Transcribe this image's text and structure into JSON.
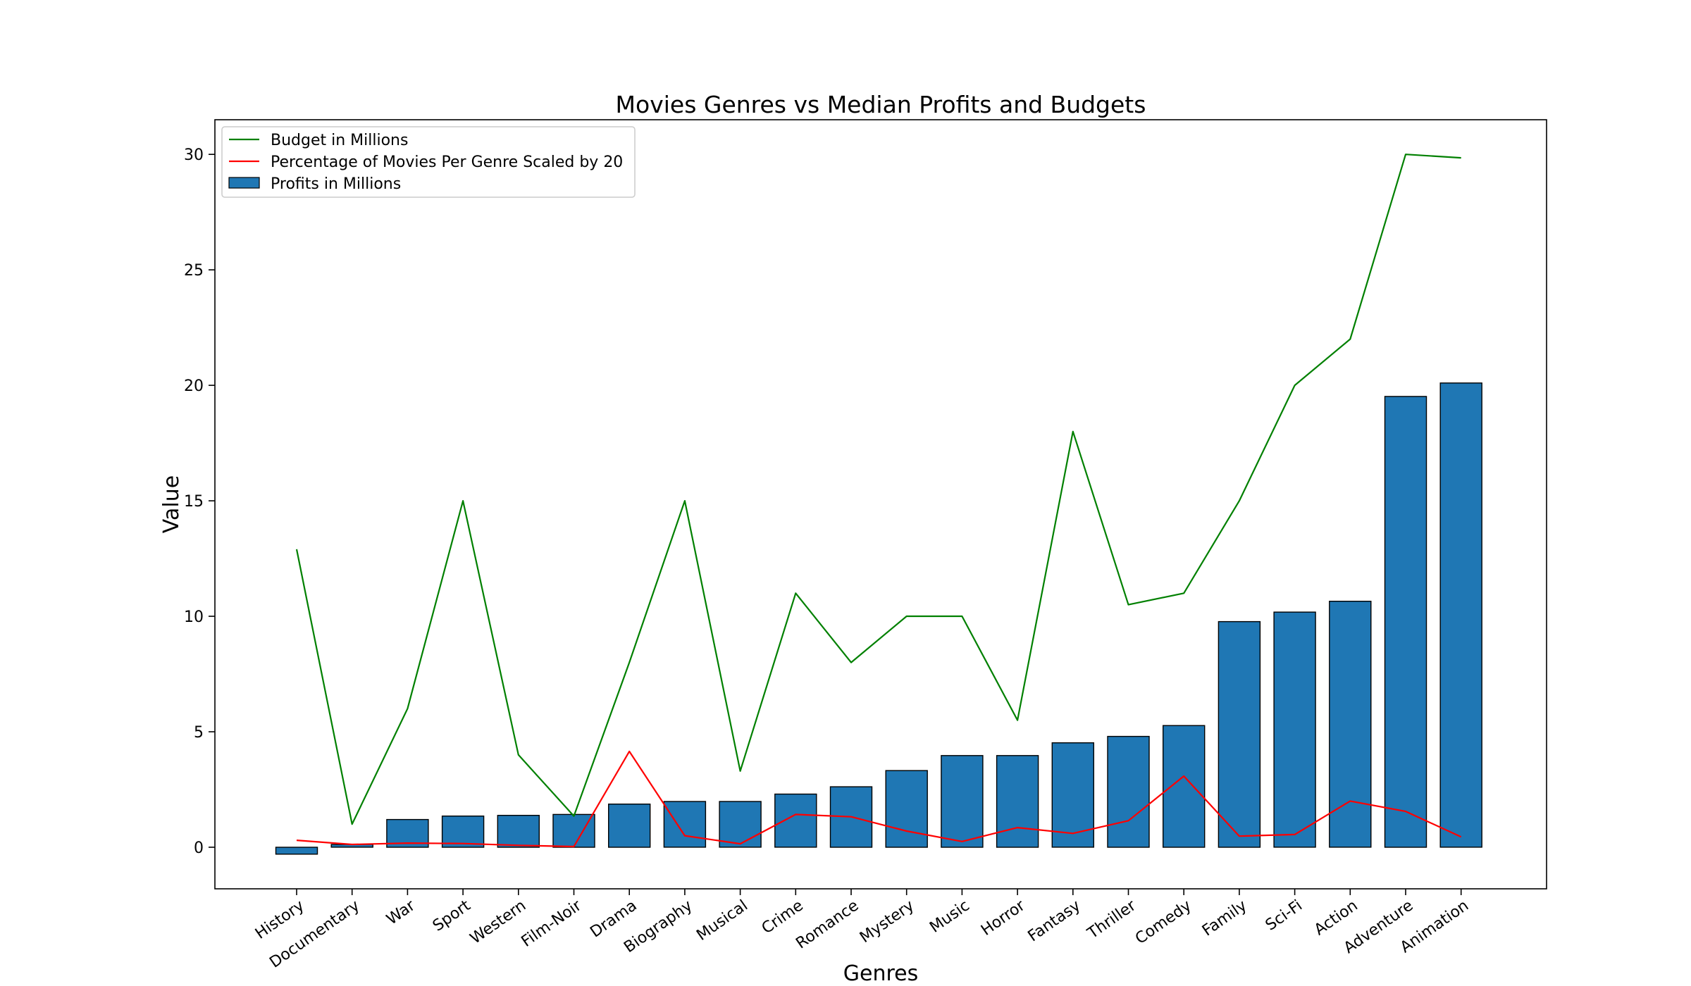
{
  "chart_data": {
    "type": "bar",
    "title": "Movies Genres vs Median Profits and Budgets",
    "xlabel": "Genres",
    "ylabel": "Value",
    "ylim": [
      -1.8,
      31.5
    ],
    "yticks": [
      0,
      5,
      10,
      15,
      20,
      25,
      30
    ],
    "grid": false,
    "legend_position": "top-left",
    "categories": [
      "History",
      "Documentary",
      "War",
      "Sport",
      "Western",
      "Film-Noir",
      "Drama",
      "Biography",
      "Musical",
      "Crime",
      "Romance",
      "Mystery",
      "Music",
      "Horror",
      "Fantasy",
      "Thriller",
      "Comedy",
      "Family",
      "Sci-Fi",
      "Action",
      "Adventure",
      "Animation"
    ],
    "series": [
      {
        "name": "Budget in Millions",
        "kind": "line",
        "color": "#008000",
        "values": [
          12.9,
          1.0,
          6.0,
          15.0,
          4.0,
          1.35,
          8.0,
          15.0,
          3.3,
          11.0,
          8.0,
          10.0,
          10.0,
          5.5,
          18.0,
          10.5,
          11.0,
          15.0,
          20.0,
          22.0,
          30.0,
          29.85
        ]
      },
      {
        "name": "Percentage of Movies Per Genre Scaled by 20",
        "kind": "line",
        "color": "#ff0000",
        "values": [
          0.3,
          0.12,
          0.18,
          0.16,
          0.08,
          0.03,
          4.15,
          0.5,
          0.15,
          1.42,
          1.32,
          0.7,
          0.25,
          0.85,
          0.6,
          1.15,
          3.08,
          0.48,
          0.55,
          2.0,
          1.55,
          0.45
        ]
      },
      {
        "name": "Profits in Millions",
        "kind": "bar",
        "color": "#1f77b4",
        "values": [
          -0.3,
          0.12,
          1.2,
          1.35,
          1.38,
          1.42,
          1.87,
          1.98,
          1.98,
          2.3,
          2.62,
          3.32,
          3.97,
          3.97,
          4.52,
          4.8,
          5.27,
          9.77,
          10.18,
          10.65,
          19.52,
          20.1
        ]
      }
    ]
  }
}
